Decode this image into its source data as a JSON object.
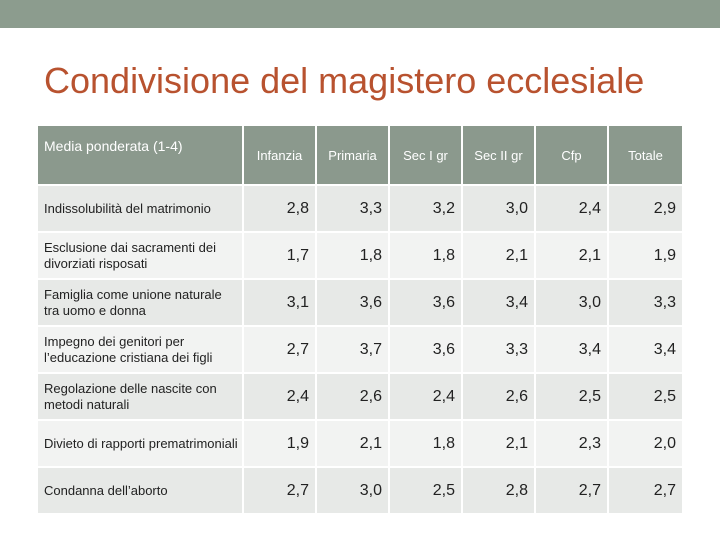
{
  "slide": {
    "title": "Condivisione del magistero ecclesiale"
  },
  "table": {
    "headers": [
      "Media ponderata (1-4)",
      "Infanzia",
      "Primaria",
      "Sec I gr",
      "Sec II gr",
      "Cfp",
      "Totale"
    ],
    "rows": [
      {
        "label": "Indissolubilità del matrimonio",
        "values": [
          "2,8",
          "3,3",
          "3,2",
          "3,0",
          "2,4",
          "2,9"
        ]
      },
      {
        "label": "Esclusione dai sacramenti dei divorziati risposati",
        "values": [
          "1,7",
          "1,8",
          "1,8",
          "2,1",
          "2,1",
          "1,9"
        ]
      },
      {
        "label": "Famiglia come unione naturale tra uomo e donna",
        "values": [
          "3,1",
          "3,6",
          "3,6",
          "3,4",
          "3,0",
          "3,3"
        ]
      },
      {
        "label": "Impegno dei genitori per l’educazione cristiana dei figli",
        "values": [
          "2,7",
          "3,7",
          "3,6",
          "3,3",
          "3,4",
          "3,4"
        ]
      },
      {
        "label": "Regolazione delle nascite con metodi naturali",
        "values": [
          "2,4",
          "2,6",
          "2,4",
          "2,6",
          "2,5",
          "2,5"
        ]
      },
      {
        "label": "Divieto di rapporti prematrimoniali",
        "values": [
          "1,9",
          "2,1",
          "1,8",
          "2,1",
          "2,3",
          "2,0"
        ]
      },
      {
        "label": "Condanna dell’aborto",
        "values": [
          "2,7",
          "3,0",
          "2,5",
          "2,8",
          "2,7",
          "2,7"
        ]
      }
    ]
  },
  "colors": {
    "title": "#b8522f",
    "header_bg": "#8b998d",
    "top_bar": "#8c9c8e",
    "row_odd": "#e7e9e7",
    "row_even": "#f2f3f2"
  }
}
